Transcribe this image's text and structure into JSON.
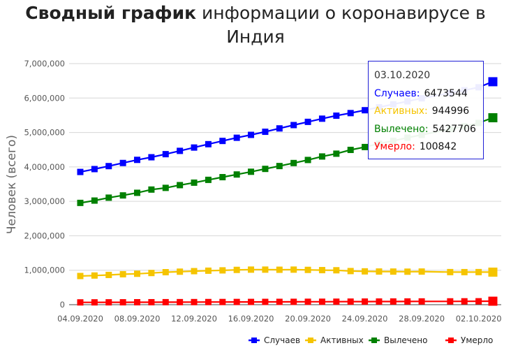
{
  "title": {
    "bold": "Сводный график",
    "rest": " информации о коронавирусе в Индия"
  },
  "tooltip": {
    "date": "03.10.2020",
    "rows": [
      {
        "label": "Случаев:",
        "value": "6473544",
        "color": "#0000ff"
      },
      {
        "label": "Активных:",
        "value": "944996",
        "color": "#f5c400"
      },
      {
        "label": "Вылечено:",
        "value": "5427706",
        "color": "#008000"
      },
      {
        "label": "Умерло:",
        "value": "100842",
        "color": "#ff0000"
      }
    ]
  },
  "chart_data": {
    "type": "line",
    "ylabel": "Человек (всего)",
    "xlabel": "",
    "ylim": [
      0,
      7000000
    ],
    "yticks": [
      0,
      1000000,
      2000000,
      3000000,
      4000000,
      5000000,
      6000000,
      7000000
    ],
    "ytick_labels": [
      "0",
      "1,000,000",
      "2,000,000",
      "3,000,000",
      "4,000,000",
      "5,000,000",
      "6,000,000",
      "7,000,000"
    ],
    "x": [
      "04.09.2020",
      "05.09.2020",
      "06.09.2020",
      "07.09.2020",
      "08.09.2020",
      "09.09.2020",
      "10.09.2020",
      "11.09.2020",
      "12.09.2020",
      "13.09.2020",
      "14.09.2020",
      "15.09.2020",
      "16.09.2020",
      "17.09.2020",
      "18.09.2020",
      "19.09.2020",
      "20.09.2020",
      "21.09.2020",
      "22.09.2020",
      "23.09.2020",
      "24.09.2020",
      "25.09.2020",
      "26.09.2020",
      "27.09.2020",
      "28.09.2020",
      "29.09.2020",
      "30.09.2020",
      "01.10.2020",
      "02.10.2020",
      "03.10.2020"
    ],
    "xtick_labels": [
      "04.09.2020",
      "08.09.2020",
      "12.09.2020",
      "16.09.2020",
      "20.09.2020",
      "24.09.2020",
      "28.09.2020",
      "02.10.2020"
    ],
    "missing_x": [
      "29.09.2020"
    ],
    "legend_position": "bottom-right",
    "grid": true,
    "series": [
      {
        "name": "Случаев",
        "color": "#0000ff",
        "values": [
          3853406,
          3936747,
          4023179,
          4113811,
          4204613,
          4280422,
          4370128,
          4465863,
          4562414,
          4659984,
          4754356,
          4846427,
          4930236,
          5020359,
          5118253,
          5214677,
          5308014,
          5400619,
          5487580,
          5562663,
          5646010,
          5732518,
          5818570,
          5903932,
          5992532,
          null,
          6145291,
          6225763,
          6312584,
          6473544
        ]
      },
      {
        "name": "Активных",
        "color": "#f5c400",
        "values": [
          832322,
          846395,
          863132,
          883697,
          897394,
          919018,
          943480,
          958316,
          973175,
          986598,
          995933,
          1009976,
          1017754,
          1017754,
          1013964,
          1017754,
          1009976,
          1003299,
          999107,
          975861,
          967230,
          962640,
          960969,
          958316,
          961640,
          null,
          946000,
          944996,
          946000,
          944996
        ]
      },
      {
        "name": "Вылечено",
        "color": "#008000",
        "values": [
          2955110,
          3022380,
          3107223,
          3172450,
          3248062,
          3342089,
          3391208,
          3471014,
          3542663,
          3624196,
          3702595,
          3780107,
          3859399,
          3942360,
          4025079,
          4112551,
          4201348,
          4303043,
          4384087,
          4493883,
          4577000,
          4674987,
          4756164,
          4849584,
          4931000,
          null,
          5098000,
          5181000,
          5278000,
          5427706
        ]
      },
      {
        "name": "Умерло",
        "color": "#ff0000",
        "values": [
          66333,
          67376,
          68472,
          69561,
          70626,
          71642,
          72775,
          73890,
          75062,
          76271,
          77472,
          78586,
          79722,
          80776,
          81901,
          82929,
          84372,
          85619,
          86752,
          88935,
          89992,
          90920,
          92290,
          93379,
          94503,
          null,
          96318,
          97497,
          98678,
          100842
        ]
      }
    ]
  }
}
